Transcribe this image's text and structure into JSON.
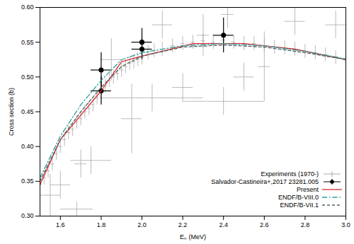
{
  "chart_data": {
    "type": "scatter",
    "x_label": "Eₙ (MeV)",
    "y_label": "Cross section (b)",
    "xlim": [
      1.5,
      3.0
    ],
    "ylim": [
      0.3,
      0.6
    ],
    "xticks": [
      1.6,
      1.8,
      {
        "value": 2,
        "label": "2.0"
      },
      2.2,
      2.4,
      2.6,
      2.8,
      {
        "value": 3,
        "label": "3.0"
      }
    ],
    "yticks": [
      {
        "value": 0.3,
        "label": "0.30"
      },
      0.35,
      {
        "value": 0.4,
        "label": "0.40"
      },
      0.45,
      {
        "value": 0.5,
        "label": "0.50"
      },
      0.55,
      {
        "value": 0.6,
        "label": "0.60"
      }
    ],
    "grid": false,
    "legend": "bottom-right",
    "series": [
      {
        "name": "Experiments (1970-)",
        "type": "scatter",
        "color": "#a8a8a8",
        "marker": "plus",
        "x": [
          1.5,
          1.52,
          1.54,
          1.56,
          1.58,
          1.6,
          1.62,
          1.64,
          1.66,
          1.68,
          1.7,
          1.72,
          1.74,
          1.76,
          1.78,
          1.8,
          1.82,
          1.84,
          1.86,
          1.88,
          1.9,
          1.92,
          1.94,
          1.96,
          1.98,
          2.0,
          2.03,
          2.06,
          2.1,
          2.15,
          2.2,
          2.25,
          2.3,
          2.35,
          2.4,
          2.45,
          2.5,
          2.55,
          2.6,
          2.65,
          2.7,
          2.75,
          2.8,
          2.85,
          2.9,
          2.95,
          3.0,
          1.6,
          1.55,
          1.68,
          1.75,
          1.7,
          1.95,
          2.05,
          2.2,
          2.4,
          2.5,
          2.6,
          2.75,
          2.95,
          2.1,
          2.3,
          2.42,
          1.85
        ],
        "values": [
          0.345,
          0.355,
          0.365,
          0.375,
          0.39,
          0.4,
          0.41,
          0.42,
          0.425,
          0.435,
          0.44,
          0.45,
          0.455,
          0.46,
          0.47,
          0.478,
          0.487,
          0.495,
          0.5,
          0.505,
          0.51,
          0.515,
          0.52,
          0.522,
          0.525,
          0.528,
          0.535,
          0.538,
          0.54,
          0.545,
          0.548,
          0.55,
          0.552,
          0.55,
          0.553,
          0.55,
          0.548,
          0.548,
          0.545,
          0.543,
          0.542,
          0.54,
          0.537,
          0.535,
          0.532,
          0.528,
          0.524,
          0.345,
          0.33,
          0.31,
          0.38,
          0.375,
          0.44,
          0.47,
          0.485,
          0.465,
          0.5,
          0.515,
          0.58,
          0.575,
          0.575,
          0.56,
          0.59,
          0.525
        ],
        "xerr": [
          0.01,
          0.01,
          0.01,
          0.01,
          0.01,
          0.01,
          0.01,
          0.01,
          0.01,
          0.01,
          0.01,
          0.01,
          0.01,
          0.01,
          0.01,
          0.01,
          0.01,
          0.01,
          0.01,
          0.01,
          0.01,
          0.01,
          0.01,
          0.01,
          0.01,
          0.01,
          0.01,
          0.01,
          0.01,
          0.01,
          0.01,
          0.01,
          0.01,
          0.01,
          0.01,
          0.01,
          0.01,
          0.01,
          0.01,
          0.01,
          0.01,
          0.01,
          0.01,
          0.01,
          0.01,
          0.01,
          0.01,
          0.05,
          0.05,
          0.08,
          0.1,
          0.03,
          0.05,
          0.25,
          0.05,
          0.2,
          0.05,
          0.03,
          0.05,
          0.05,
          0.05,
          0.03,
          0.03,
          0.05
        ],
        "yerr": [
          0.01,
          0.01,
          0.01,
          0.01,
          0.01,
          0.01,
          0.01,
          0.01,
          0.01,
          0.01,
          0.01,
          0.01,
          0.01,
          0.01,
          0.01,
          0.01,
          0.01,
          0.01,
          0.01,
          0.01,
          0.01,
          0.01,
          0.01,
          0.01,
          0.01,
          0.01,
          0.01,
          0.01,
          0.01,
          0.01,
          0.01,
          0.01,
          0.01,
          0.01,
          0.01,
          0.01,
          0.01,
          0.01,
          0.01,
          0.01,
          0.01,
          0.01,
          0.01,
          0.01,
          0.01,
          0.01,
          0.01,
          0.02,
          0.03,
          0.01,
          0.02,
          0.02,
          0.05,
          0.02,
          0.02,
          0.02,
          0.02,
          0.05,
          0.02,
          0.02,
          0.02,
          0.03,
          0.02,
          0.03
        ]
      },
      {
        "name": "Salvador-Castineira+,2017 23281.005",
        "type": "scatter",
        "color": "#000000",
        "marker": "circle",
        "x": [
          1.8,
          1.8,
          2.0,
          2.0,
          2.4
        ],
        "values": [
          0.51,
          0.48,
          0.55,
          0.54,
          0.56
        ],
        "xerr": [
          0.05,
          0.05,
          0.05,
          0.05,
          0.05
        ],
        "yerr": [
          0.025,
          0.02,
          0.02,
          0.015,
          0.025
        ]
      },
      {
        "name": "Present",
        "type": "line",
        "color": "#e0282e",
        "line_style": "solid",
        "x": [
          1.5,
          1.6,
          1.7,
          1.8,
          1.9,
          2.0,
          2.1,
          2.25,
          2.5,
          2.75,
          3.0
        ],
        "values": [
          0.345,
          0.41,
          0.445,
          0.48,
          0.522,
          0.53,
          0.537,
          0.548,
          0.548,
          0.54,
          0.525
        ]
      },
      {
        "name": "ENDF/B-VIII.0",
        "type": "line",
        "color": "#2f9a9a",
        "line_style": "dashdot",
        "x": [
          1.5,
          1.6,
          1.7,
          1.8,
          1.9,
          2.0,
          2.2,
          2.4,
          2.6,
          2.8,
          3.0
        ],
        "values": [
          0.355,
          0.415,
          0.46,
          0.495,
          0.525,
          0.535,
          0.545,
          0.548,
          0.545,
          0.537,
          0.526
        ]
      },
      {
        "name": "ENDF/B-VII.1",
        "type": "line",
        "color": "#4f6464",
        "line_style": "dashed",
        "x": [
          1.5,
          1.6,
          1.7,
          1.8,
          1.9,
          2.0,
          2.2,
          2.4,
          2.6,
          2.8,
          3.0
        ],
        "values": [
          0.35,
          0.41,
          0.45,
          0.485,
          0.515,
          0.53,
          0.543,
          0.546,
          0.543,
          0.535,
          0.525
        ]
      }
    ]
  }
}
